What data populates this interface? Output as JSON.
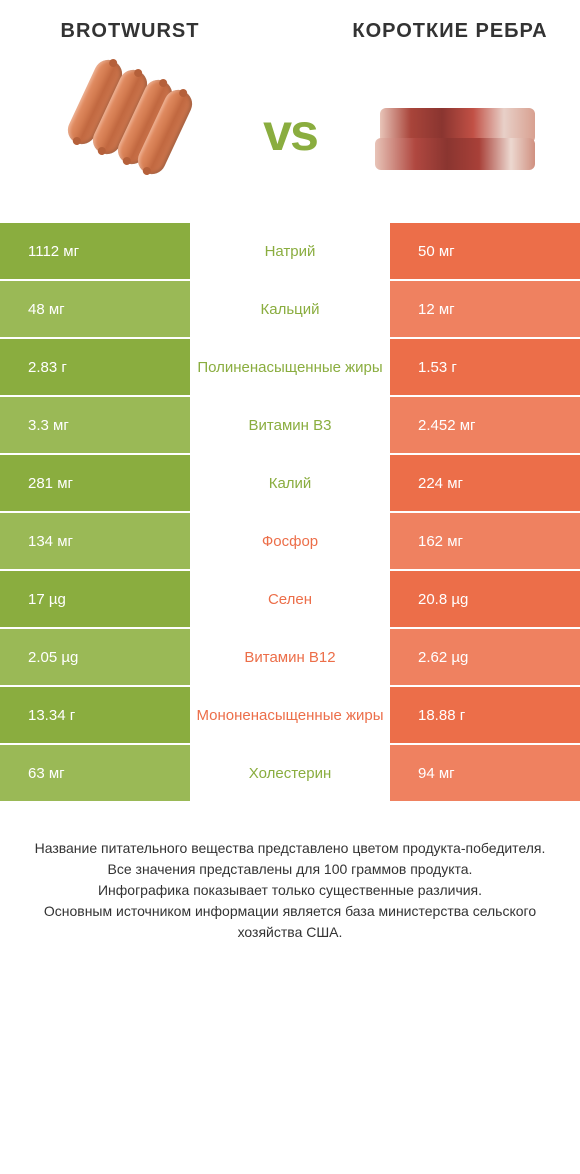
{
  "header": {
    "title_left": "BROTWURST",
    "title_right": "КОРОТКИЕ РЕБРА",
    "vs": "vs"
  },
  "colors": {
    "green": "#8aad3f",
    "green_alt": "#9ab956",
    "orange": "#ec6e49",
    "orange_alt": "#ef8160",
    "background": "#ffffff"
  },
  "rows": [
    {
      "left": "1112 мг",
      "center": "Натрий",
      "right": "50 мг",
      "winner": "left",
      "alt": false
    },
    {
      "left": "48 мг",
      "center": "Кальций",
      "right": "12 мг",
      "winner": "left",
      "alt": true
    },
    {
      "left": "2.83 г",
      "center": "Полиненасыщенные жиры",
      "right": "1.53 г",
      "winner": "left",
      "alt": false
    },
    {
      "left": "3.3 мг",
      "center": "Витамин B3",
      "right": "2.452 мг",
      "winner": "left",
      "alt": true
    },
    {
      "left": "281 мг",
      "center": "Калий",
      "right": "224 мг",
      "winner": "left",
      "alt": false
    },
    {
      "left": "134 мг",
      "center": "Фосфор",
      "right": "162 мг",
      "winner": "right",
      "alt": true
    },
    {
      "left": "17 µg",
      "center": "Селен",
      "right": "20.8 µg",
      "winner": "right",
      "alt": false
    },
    {
      "left": "2.05 µg",
      "center": "Витамин B12",
      "right": "2.62 µg",
      "winner": "right",
      "alt": true
    },
    {
      "left": "13.34 г",
      "center": "Мононенасыщенные жиры",
      "right": "18.88 г",
      "winner": "right",
      "alt": false
    },
    {
      "left": "63 мг",
      "center": "Холестерин",
      "right": "94 мг",
      "winner": "left",
      "alt": true
    }
  ],
  "footer": "Название питательного вещества представлено цветом продукта-победителя.\nВсе значения представлены для 100 граммов продукта.\nИнфографика показывает только существенные различия.\nОсновным источником информации является база министерства сельского хозяйства США."
}
